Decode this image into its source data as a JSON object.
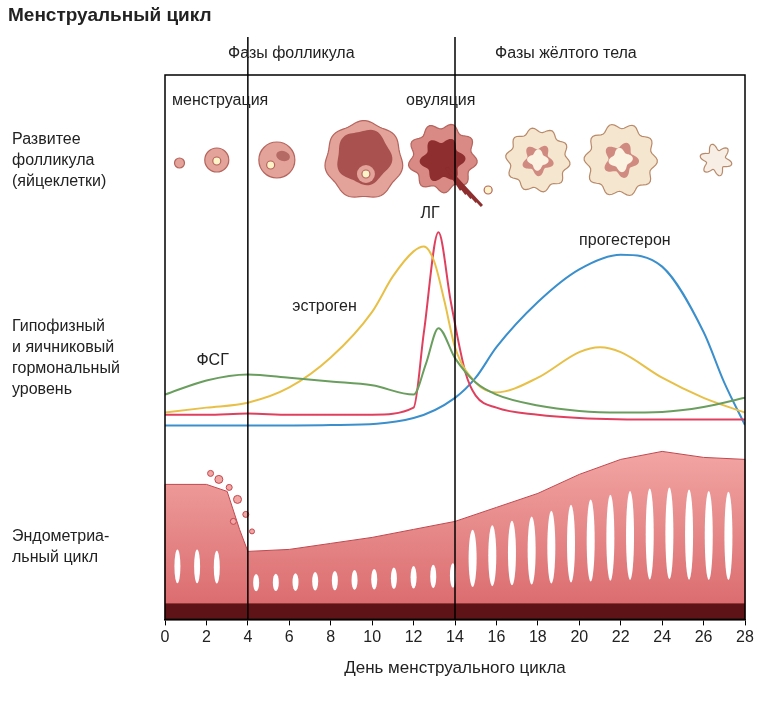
{
  "title": "Менструальный цикл",
  "phases": [
    "Фазы фолликула",
    "Фазы жёлтого тела"
  ],
  "events": [
    "менструация",
    "овуляция"
  ],
  "row_labels": [
    [
      "Развитее",
      "фолликула",
      "(яйцеклетки)"
    ],
    [
      "Гипофизный",
      "и яичниковый",
      "гормональный",
      "уровень"
    ],
    [
      "Эндометриа-",
      "льный цикл"
    ]
  ],
  "chart_data": {
    "type": "line",
    "x_label": "День менструального цикла",
    "xlim": [
      0,
      28
    ],
    "xticks": [
      0,
      2,
      4,
      6,
      8,
      10,
      12,
      14,
      16,
      18,
      20,
      22,
      24,
      26,
      28
    ],
    "ylim": [
      0,
      100
    ],
    "tick_labels": "x",
    "grid": false,
    "phase_boundaries": [
      4,
      14
    ],
    "series": [
      {
        "name": "ФСГ",
        "color": "#6a9e5e",
        "x": [
          0,
          2,
          4,
          6,
          8,
          10,
          12,
          12.6,
          13.2,
          14,
          15,
          16,
          18,
          20,
          22,
          24,
          26,
          28
        ],
        "values": [
          41.3,
          43.9,
          45,
          44.4,
          43.7,
          43,
          41.3,
          47,
          53.5,
          48,
          43.5,
          41.3,
          39.3,
          38.3,
          38,
          38.1,
          39,
          40.7
        ]
      },
      {
        "name": "эстроген",
        "color": "#e8c048",
        "x": [
          0,
          2,
          4,
          6,
          8,
          10,
          11,
          12,
          12.5,
          13,
          13.5,
          14,
          15,
          16,
          18,
          20,
          21,
          22,
          24,
          26,
          28
        ],
        "values": [
          38,
          38.9,
          39.8,
          42.6,
          48.1,
          56.5,
          63,
          67.6,
          68.5,
          65.7,
          58.3,
          50,
          43.5,
          41.7,
          44.4,
          49.1,
          50,
          49.1,
          44.4,
          40.7,
          38
        ]
      },
      {
        "name": "ЛГ",
        "color": "#e0405e",
        "x": [
          0,
          2,
          4,
          6,
          8,
          10,
          12,
          12.5,
          13.2,
          13.8,
          14.5,
          15,
          16,
          18,
          20,
          24,
          28
        ],
        "values": [
          37.6,
          37.6,
          37.8,
          37.6,
          37.6,
          37.6,
          38.9,
          52.8,
          71.1,
          58.3,
          45.4,
          41.1,
          38.9,
          37.6,
          37,
          36.7,
          36.7
        ]
      },
      {
        "name": "прогестерон",
        "color": "#3a8fcc",
        "x": [
          0,
          4,
          8,
          12,
          14,
          15,
          16,
          18,
          20,
          22,
          24,
          26,
          27,
          28
        ],
        "values": [
          35.6,
          35.6,
          35.7,
          37,
          40.7,
          44.4,
          50,
          58.3,
          64.3,
          67,
          64.8,
          52.8,
          43.5,
          35.7
        ]
      }
    ]
  }
}
